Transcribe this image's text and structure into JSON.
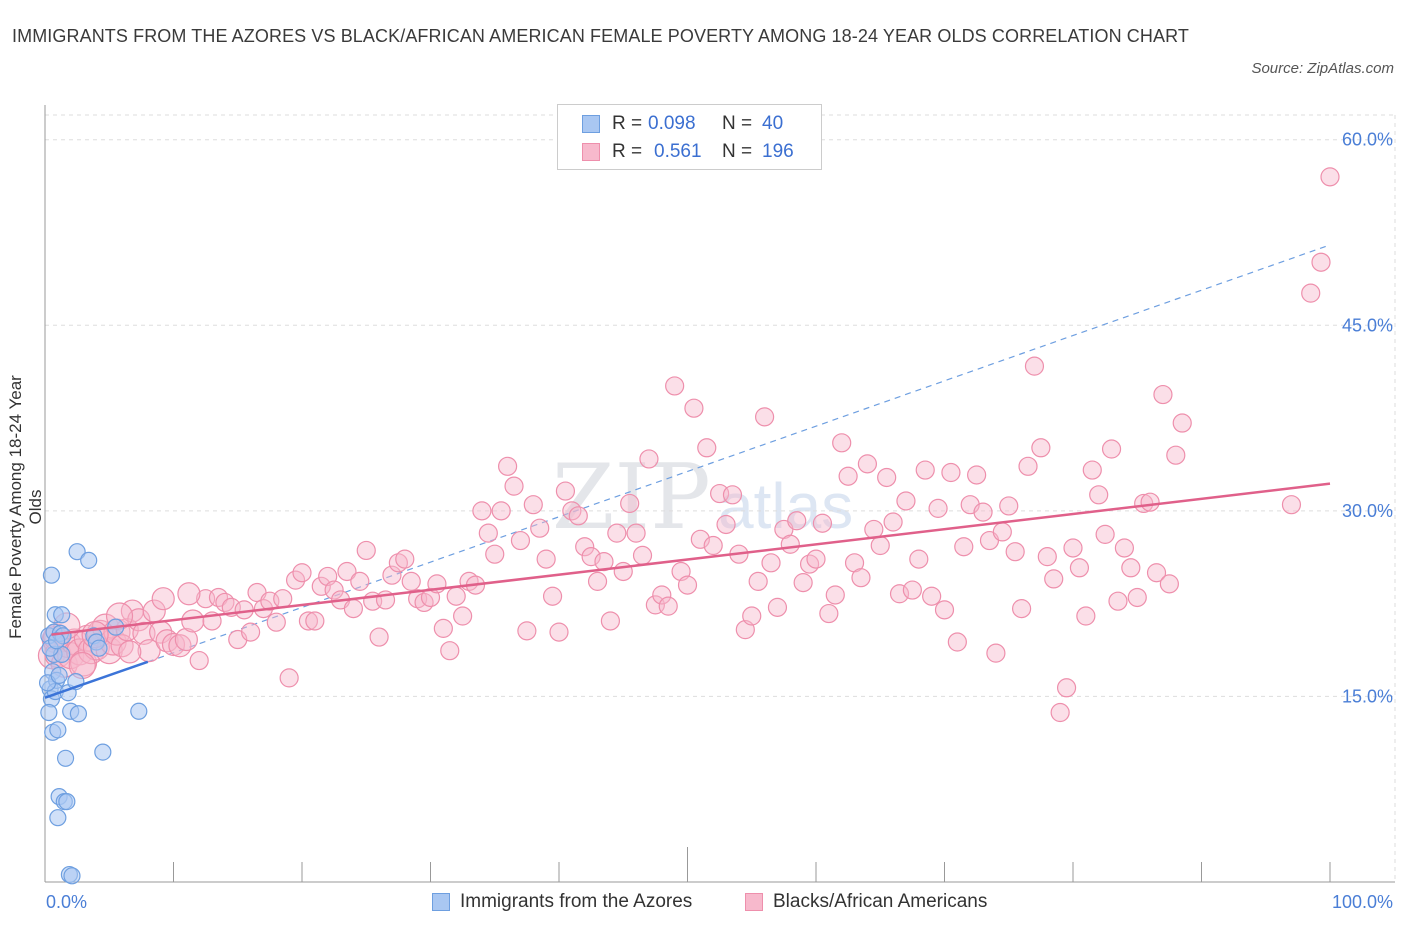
{
  "title": "IMMIGRANTS FROM THE AZORES VS BLACK/AFRICAN AMERICAN FEMALE POVERTY AMONG 18-24 YEAR OLDS CORRELATION CHART",
  "source": "Source: ZipAtlas.com",
  "watermark": {
    "zip": "ZIP",
    "atlas": "atlas"
  },
  "colors": {
    "blue_fill": "#a9c7f2",
    "blue_stroke": "#6e9fe0",
    "blue_line": "#3b74d8",
    "pink_fill": "#f7b9cc",
    "pink_stroke": "#ee8fac",
    "pink_line": "#e0608a",
    "tick": "#4a7ed6",
    "grid": "#dddddd"
  },
  "legend": {
    "rows": [
      {
        "r_label": "R =",
        "r_value": "0.098",
        "n_label": "N =",
        "n_value": "40"
      },
      {
        "r_label": "R =",
        "r_value": "0.561",
        "n_label": "N =",
        "n_value": "196"
      }
    ]
  },
  "chart_data": {
    "type": "scatter",
    "title": "IMMIGRANTS FROM THE AZORES VS BLACK/AFRICAN AMERICAN FEMALE POVERTY AMONG 18-24 YEAR OLDS CORRELATION CHART",
    "xlabel": "",
    "ylabel": "Female Poverty Among 18-24 Year Olds",
    "xlim": [
      0,
      100
    ],
    "ylim": [
      0,
      62
    ],
    "x_tick_labels": [
      "0.0%",
      "100.0%"
    ],
    "y_ticks": [
      15,
      30,
      45,
      60
    ],
    "y_tick_labels": [
      "15.0%",
      "30.0%",
      "45.0%",
      "60.0%"
    ],
    "grid": true,
    "legend_position": "top-center",
    "series": [
      {
        "name": "Immigrants from the Azores",
        "color": "#a9c7f2",
        "r": 0.098,
        "n": 40,
        "trend": {
          "x": [
            0,
            8
          ],
          "y": [
            14.9,
            17.8
          ],
          "style": "solid"
        },
        "trend_extension": {
          "x": [
            8,
            100
          ],
          "y": [
            17.8,
            51.5
          ],
          "style": "dashed"
        },
        "points": [
          [
            0.3,
            19.9
          ],
          [
            0.6,
            17.0
          ],
          [
            0.4,
            15.6
          ],
          [
            0.5,
            14.8
          ],
          [
            0.3,
            13.7
          ],
          [
            0.6,
            12.1
          ],
          [
            0.5,
            24.8
          ],
          [
            0.8,
            21.6
          ],
          [
            0.7,
            20.2
          ],
          [
            0.7,
            18.4
          ],
          [
            0.9,
            16.3
          ],
          [
            0.8,
            15.4
          ],
          [
            1.0,
            12.3
          ],
          [
            1.1,
            6.9
          ],
          [
            1.0,
            5.2
          ],
          [
            1.2,
            20.1
          ],
          [
            1.3,
            18.4
          ],
          [
            1.4,
            19.9
          ],
          [
            1.5,
            6.5
          ],
          [
            1.6,
            10.0
          ],
          [
            1.7,
            6.5
          ],
          [
            1.8,
            15.3
          ],
          [
            1.9,
            0.6
          ],
          [
            2.0,
            13.8
          ],
          [
            2.1,
            0.5
          ],
          [
            2.4,
            16.2
          ],
          [
            2.6,
            13.6
          ],
          [
            2.5,
            26.7
          ],
          [
            3.4,
            26.0
          ],
          [
            3.8,
            19.9
          ],
          [
            4.0,
            19.4
          ],
          [
            4.2,
            18.9
          ],
          [
            4.5,
            10.5
          ],
          [
            5.5,
            20.6
          ],
          [
            7.3,
            13.8
          ],
          [
            0.2,
            16.1
          ],
          [
            0.4,
            18.9
          ],
          [
            1.1,
            16.7
          ],
          [
            1.3,
            21.6
          ],
          [
            0.9,
            19.5
          ]
        ]
      },
      {
        "name": "Blacks/African Americans",
        "color": "#f7b9cc",
        "r": 0.561,
        "n": 196,
        "trend": {
          "x": [
            0.5,
            100
          ],
          "y": [
            20.0,
            32.2
          ],
          "style": "solid"
        },
        "points": [
          [
            0.5,
            18.3
          ],
          [
            0.8,
            19.6
          ],
          [
            1.0,
            18.4
          ],
          [
            1.5,
            17.6
          ],
          [
            1.8,
            19.2
          ],
          [
            2.0,
            18.3
          ],
          [
            2.3,
            19.4
          ],
          [
            2.7,
            18.6
          ],
          [
            3.0,
            17.7
          ],
          [
            3.3,
            19.7
          ],
          [
            3.6,
            18.7
          ],
          [
            4.0,
            19.0
          ],
          [
            4.3,
            20.1
          ],
          [
            4.7,
            20.6
          ],
          [
            5.0,
            18.7
          ],
          [
            5.3,
            19.4
          ],
          [
            5.6,
            20.2
          ],
          [
            6.0,
            19.1
          ],
          [
            6.4,
            20.4
          ],
          [
            6.8,
            21.9
          ],
          [
            7.3,
            21.2
          ],
          [
            7.7,
            20.1
          ],
          [
            8.1,
            18.7
          ],
          [
            8.5,
            21.9
          ],
          [
            9.0,
            20.2
          ],
          [
            9.5,
            19.5
          ],
          [
            10.0,
            19.2
          ],
          [
            10.5,
            19.1
          ],
          [
            11.0,
            19.6
          ],
          [
            11.5,
            21.1
          ],
          [
            12.0,
            17.9
          ],
          [
            12.5,
            22.9
          ],
          [
            13.0,
            21.1
          ],
          [
            13.5,
            23.0
          ],
          [
            14.0,
            22.6
          ],
          [
            14.5,
            22.2
          ],
          [
            15.0,
            19.6
          ],
          [
            15.5,
            22.0
          ],
          [
            16.0,
            20.2
          ],
          [
            16.5,
            23.4
          ],
          [
            17.0,
            22.1
          ],
          [
            17.5,
            22.7
          ],
          [
            18.0,
            21.0
          ],
          [
            18.5,
            22.9
          ],
          [
            19.0,
            16.5
          ],
          [
            19.5,
            24.4
          ],
          [
            20.0,
            25.0
          ],
          [
            20.5,
            21.1
          ],
          [
            21.0,
            21.1
          ],
          [
            21.5,
            23.9
          ],
          [
            22.0,
            24.7
          ],
          [
            22.5,
            23.6
          ],
          [
            23.0,
            22.8
          ],
          [
            23.5,
            25.1
          ],
          [
            24.0,
            22.1
          ],
          [
            24.5,
            24.3
          ],
          [
            25.0,
            26.8
          ],
          [
            25.5,
            22.7
          ],
          [
            26.0,
            19.8
          ],
          [
            26.5,
            22.8
          ],
          [
            27.0,
            24.8
          ],
          [
            27.5,
            25.8
          ],
          [
            28.0,
            26.1
          ],
          [
            28.5,
            24.3
          ],
          [
            29.0,
            22.9
          ],
          [
            29.5,
            22.6
          ],
          [
            30.0,
            23.0
          ],
          [
            30.5,
            24.1
          ],
          [
            31.0,
            20.5
          ],
          [
            31.5,
            18.7
          ],
          [
            32.0,
            23.1
          ],
          [
            32.5,
            21.5
          ],
          [
            33.0,
            24.3
          ],
          [
            33.5,
            24.0
          ],
          [
            34.0,
            30.0
          ],
          [
            34.5,
            28.2
          ],
          [
            35.0,
            26.5
          ],
          [
            35.5,
            30.0
          ],
          [
            36.0,
            33.6
          ],
          [
            36.5,
            32.0
          ],
          [
            37.0,
            27.6
          ],
          [
            37.5,
            20.3
          ],
          [
            38.0,
            30.5
          ],
          [
            38.5,
            28.6
          ],
          [
            39.0,
            26.1
          ],
          [
            39.5,
            23.1
          ],
          [
            40.0,
            20.2
          ],
          [
            40.5,
            31.6
          ],
          [
            41.0,
            30.0
          ],
          [
            41.5,
            29.6
          ],
          [
            42.0,
            27.1
          ],
          [
            42.5,
            26.3
          ],
          [
            43.0,
            24.3
          ],
          [
            43.5,
            25.9
          ],
          [
            44.0,
            21.1
          ],
          [
            44.5,
            28.2
          ],
          [
            45.0,
            25.1
          ],
          [
            45.5,
            30.6
          ],
          [
            46.0,
            28.2
          ],
          [
            46.5,
            26.4
          ],
          [
            47.0,
            34.2
          ],
          [
            47.5,
            22.4
          ],
          [
            48.0,
            23.2
          ],
          [
            48.5,
            22.3
          ],
          [
            49.0,
            40.1
          ],
          [
            49.5,
            25.1
          ],
          [
            50.0,
            24.0
          ],
          [
            50.5,
            38.3
          ],
          [
            51.0,
            27.7
          ],
          [
            51.5,
            35.1
          ],
          [
            52.0,
            27.2
          ],
          [
            52.5,
            31.4
          ],
          [
            53.0,
            28.9
          ],
          [
            53.5,
            31.3
          ],
          [
            54.0,
            26.5
          ],
          [
            54.5,
            20.4
          ],
          [
            55.0,
            21.5
          ],
          [
            55.5,
            24.3
          ],
          [
            56.0,
            37.6
          ],
          [
            56.5,
            25.8
          ],
          [
            57.0,
            22.2
          ],
          [
            57.5,
            28.5
          ],
          [
            58.0,
            27.3
          ],
          [
            58.5,
            29.2
          ],
          [
            59.0,
            24.2
          ],
          [
            59.5,
            25.7
          ],
          [
            60.0,
            26.1
          ],
          [
            60.5,
            29.0
          ],
          [
            61.0,
            21.7
          ],
          [
            61.5,
            23.2
          ],
          [
            62.0,
            35.5
          ],
          [
            62.5,
            32.8
          ],
          [
            63.0,
            25.8
          ],
          [
            63.5,
            24.6
          ],
          [
            64.0,
            33.8
          ],
          [
            64.5,
            28.5
          ],
          [
            65.0,
            27.2
          ],
          [
            65.5,
            32.7
          ],
          [
            66.0,
            29.1
          ],
          [
            66.5,
            23.3
          ],
          [
            67.0,
            30.8
          ],
          [
            67.5,
            23.6
          ],
          [
            68.0,
            26.1
          ],
          [
            68.5,
            33.3
          ],
          [
            69.0,
            23.1
          ],
          [
            69.5,
            30.2
          ],
          [
            70.0,
            22.0
          ],
          [
            70.5,
            33.1
          ],
          [
            71.0,
            19.4
          ],
          [
            71.5,
            27.1
          ],
          [
            72.0,
            30.5
          ],
          [
            72.5,
            32.9
          ],
          [
            73.0,
            29.9
          ],
          [
            73.5,
            27.6
          ],
          [
            74.0,
            18.5
          ],
          [
            74.5,
            28.3
          ],
          [
            75.0,
            30.4
          ],
          [
            75.5,
            26.7
          ],
          [
            76.0,
            22.1
          ],
          [
            76.5,
            33.6
          ],
          [
            77.0,
            41.7
          ],
          [
            77.5,
            35.1
          ],
          [
            78.0,
            26.3
          ],
          [
            78.5,
            24.5
          ],
          [
            79.0,
            13.7
          ],
          [
            79.5,
            15.7
          ],
          [
            80.0,
            27.0
          ],
          [
            80.5,
            25.4
          ],
          [
            81.0,
            21.5
          ],
          [
            81.5,
            33.3
          ],
          [
            82.0,
            31.3
          ],
          [
            82.5,
            28.1
          ],
          [
            83.0,
            35.0
          ],
          [
            83.5,
            22.7
          ],
          [
            84.0,
            27.0
          ],
          [
            84.5,
            25.4
          ],
          [
            85.0,
            23.0
          ],
          [
            85.5,
            30.6
          ],
          [
            86.0,
            30.7
          ],
          [
            86.5,
            25.0
          ],
          [
            87.0,
            39.4
          ],
          [
            87.5,
            24.1
          ],
          [
            88.0,
            34.5
          ],
          [
            88.5,
            37.1
          ],
          [
            97.0,
            30.5
          ],
          [
            98.5,
            47.6
          ],
          [
            99.3,
            50.1
          ],
          [
            100.0,
            57.0
          ],
          [
            0.9,
            19.8
          ],
          [
            1.7,
            20.7
          ],
          [
            2.9,
            17.5
          ],
          [
            3.9,
            20.0
          ],
          [
            5.8,
            21.5
          ],
          [
            6.6,
            18.6
          ],
          [
            9.2,
            22.9
          ],
          [
            11.2,
            23.3
          ]
        ]
      }
    ]
  }
}
